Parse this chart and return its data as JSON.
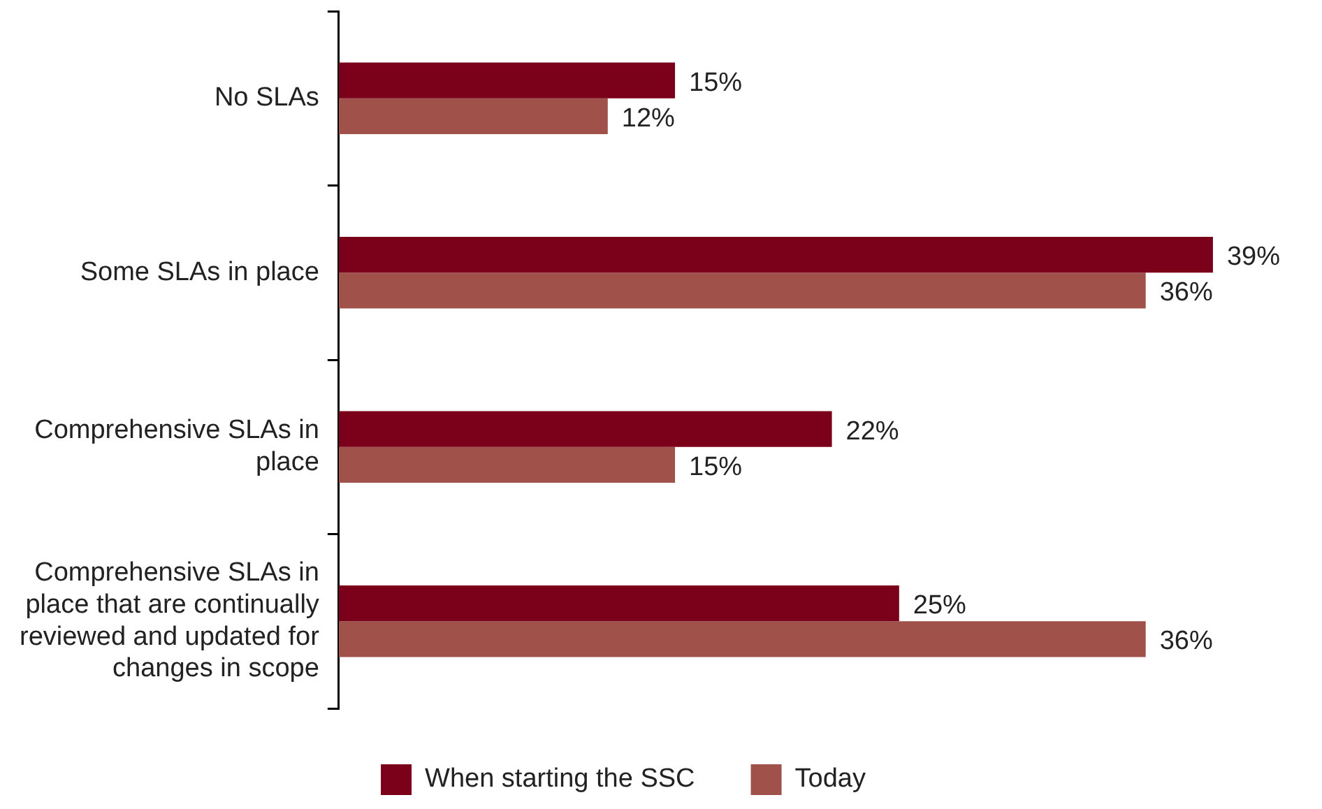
{
  "chart_data": {
    "type": "bar",
    "orientation": "horizontal",
    "legend": "bottom",
    "tick_labels": "y",
    "categories": [
      "No SLAs",
      "Some SLAs in place",
      "Comprehensive SLAs in place",
      "Comprehensive SLAs in place that are continually reviewed and updated for changes in scope"
    ],
    "series": [
      {
        "name": "When starting the SSC",
        "color": "#7b0019",
        "values": [
          15,
          39,
          22,
          25
        ],
        "value_labels": [
          "15%",
          "39%",
          "22%",
          "25%"
        ]
      },
      {
        "name": "Today",
        "color": "#a0514a",
        "values": [
          12,
          36,
          15,
          36
        ],
        "value_labels": [
          "12%",
          "36%",
          "15%",
          "36%"
        ]
      }
    ]
  }
}
